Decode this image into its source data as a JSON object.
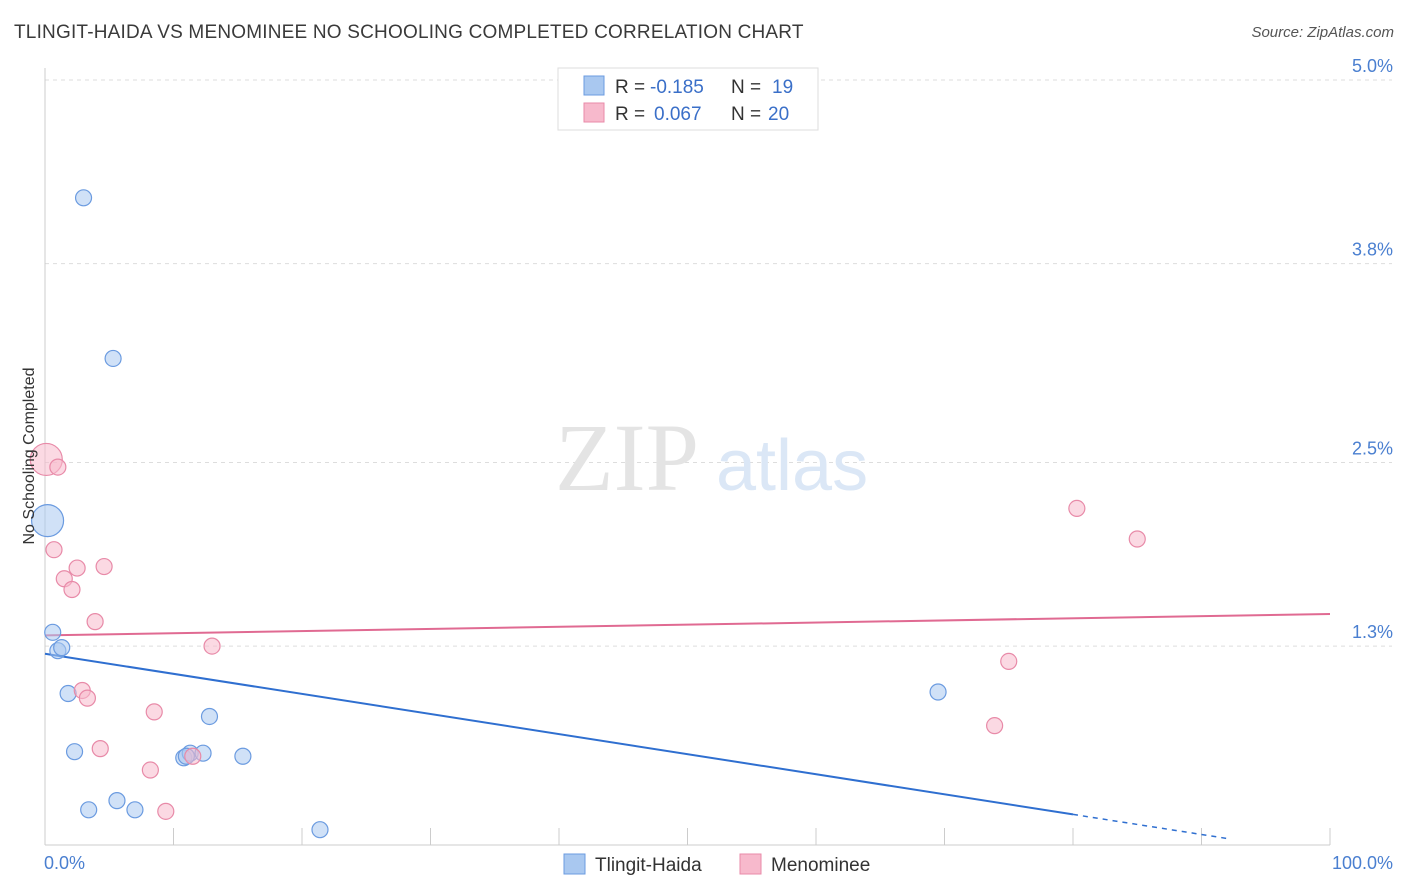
{
  "title": "TLINGIT-HAIDA VS MENOMINEE NO SCHOOLING COMPLETED CORRELATION CHART",
  "source": "Source: ZipAtlas.com",
  "colors": {
    "blue_fill": "#a9c8f0",
    "blue_stroke": "#6b9be0",
    "blue_line": "#2f6fd0",
    "pink_fill": "#f7b9cc",
    "pink_stroke": "#e88aa8",
    "pink_line": "#e06a92",
    "tick_text": "#4a7fd0",
    "grid": "#dddddd"
  },
  "legend": {
    "rows": [
      {
        "r_label": "R =",
        "r_value": "-0.185",
        "n_label": "N =",
        "n_value": "19"
      },
      {
        "r_label": "R =",
        "r_value": "0.067",
        "n_label": "N =",
        "n_value": "20"
      }
    ]
  },
  "watermark": {
    "zip": "ZIP",
    "atlas": "atlas"
  },
  "chart_data": {
    "type": "scatter",
    "title": "TLINGIT-HAIDA VS MENOMINEE NO SCHOOLING COMPLETED CORRELATION CHART",
    "xlabel": "",
    "ylabel": "No Schooling Completed",
    "xlim": [
      0,
      100
    ],
    "ylim": [
      0,
      5.0
    ],
    "x_tick_labels": [
      "0.0%",
      "100.0%"
    ],
    "y_ticks": [
      {
        "value": 1.3,
        "label": "1.3%"
      },
      {
        "value": 2.5,
        "label": "2.5%"
      },
      {
        "value": 3.8,
        "label": "3.8%"
      },
      {
        "value": 5.0,
        "label": "5.0%"
      }
    ],
    "series": [
      {
        "name": "Tlingit-Haida",
        "color": "blue",
        "points": [
          {
            "x": 3.0,
            "y": 4.23,
            "r": 8
          },
          {
            "x": 5.3,
            "y": 3.18,
            "r": 8
          },
          {
            "x": 0.2,
            "y": 2.12,
            "r": 16
          },
          {
            "x": 0.6,
            "y": 1.39,
            "r": 8
          },
          {
            "x": 1.0,
            "y": 1.27,
            "r": 8
          },
          {
            "x": 1.3,
            "y": 1.29,
            "r": 8
          },
          {
            "x": 1.8,
            "y": 0.99,
            "r": 8
          },
          {
            "x": 2.3,
            "y": 0.61,
            "r": 8
          },
          {
            "x": 3.4,
            "y": 0.23,
            "r": 8
          },
          {
            "x": 5.6,
            "y": 0.29,
            "r": 8
          },
          {
            "x": 7.0,
            "y": 0.23,
            "r": 8
          },
          {
            "x": 10.8,
            "y": 0.57,
            "r": 8
          },
          {
            "x": 11.3,
            "y": 0.6,
            "r": 8
          },
          {
            "x": 12.3,
            "y": 0.6,
            "r": 8
          },
          {
            "x": 12.8,
            "y": 0.84,
            "r": 8
          },
          {
            "x": 15.4,
            "y": 0.58,
            "r": 8
          },
          {
            "x": 21.4,
            "y": 0.1,
            "r": 8
          },
          {
            "x": 69.5,
            "y": 1.0,
            "r": 8
          },
          {
            "x": 11.0,
            "y": 0.58,
            "r": 8
          }
        ],
        "trend": {
          "x1": 0,
          "y1": 1.25,
          "x2": 80,
          "y2": 0.2,
          "dash_to_x": 92
        }
      },
      {
        "name": "Menominee",
        "color": "pink",
        "points": [
          {
            "x": 0.1,
            "y": 2.52,
            "r": 16
          },
          {
            "x": 1.0,
            "y": 2.47,
            "r": 8
          },
          {
            "x": 0.7,
            "y": 1.93,
            "r": 8
          },
          {
            "x": 1.5,
            "y": 1.74,
            "r": 8
          },
          {
            "x": 2.1,
            "y": 1.67,
            "r": 8
          },
          {
            "x": 2.5,
            "y": 1.81,
            "r": 8
          },
          {
            "x": 4.6,
            "y": 1.82,
            "r": 8
          },
          {
            "x": 3.9,
            "y": 1.46,
            "r": 8
          },
          {
            "x": 2.9,
            "y": 1.01,
            "r": 8
          },
          {
            "x": 3.3,
            "y": 0.96,
            "r": 8
          },
          {
            "x": 4.3,
            "y": 0.63,
            "r": 8
          },
          {
            "x": 8.5,
            "y": 0.87,
            "r": 8
          },
          {
            "x": 8.2,
            "y": 0.49,
            "r": 8
          },
          {
            "x": 9.4,
            "y": 0.22,
            "r": 8
          },
          {
            "x": 13.0,
            "y": 1.3,
            "r": 8
          },
          {
            "x": 75.0,
            "y": 1.2,
            "r": 8
          },
          {
            "x": 73.9,
            "y": 0.78,
            "r": 8
          },
          {
            "x": 80.3,
            "y": 2.2,
            "r": 8
          },
          {
            "x": 85.0,
            "y": 2.0,
            "r": 8
          },
          {
            "x": 11.5,
            "y": 0.58,
            "r": 8
          }
        ],
        "trend": {
          "x1": 0,
          "y1": 1.37,
          "x2": 100,
          "y2": 1.51
        }
      }
    ]
  }
}
